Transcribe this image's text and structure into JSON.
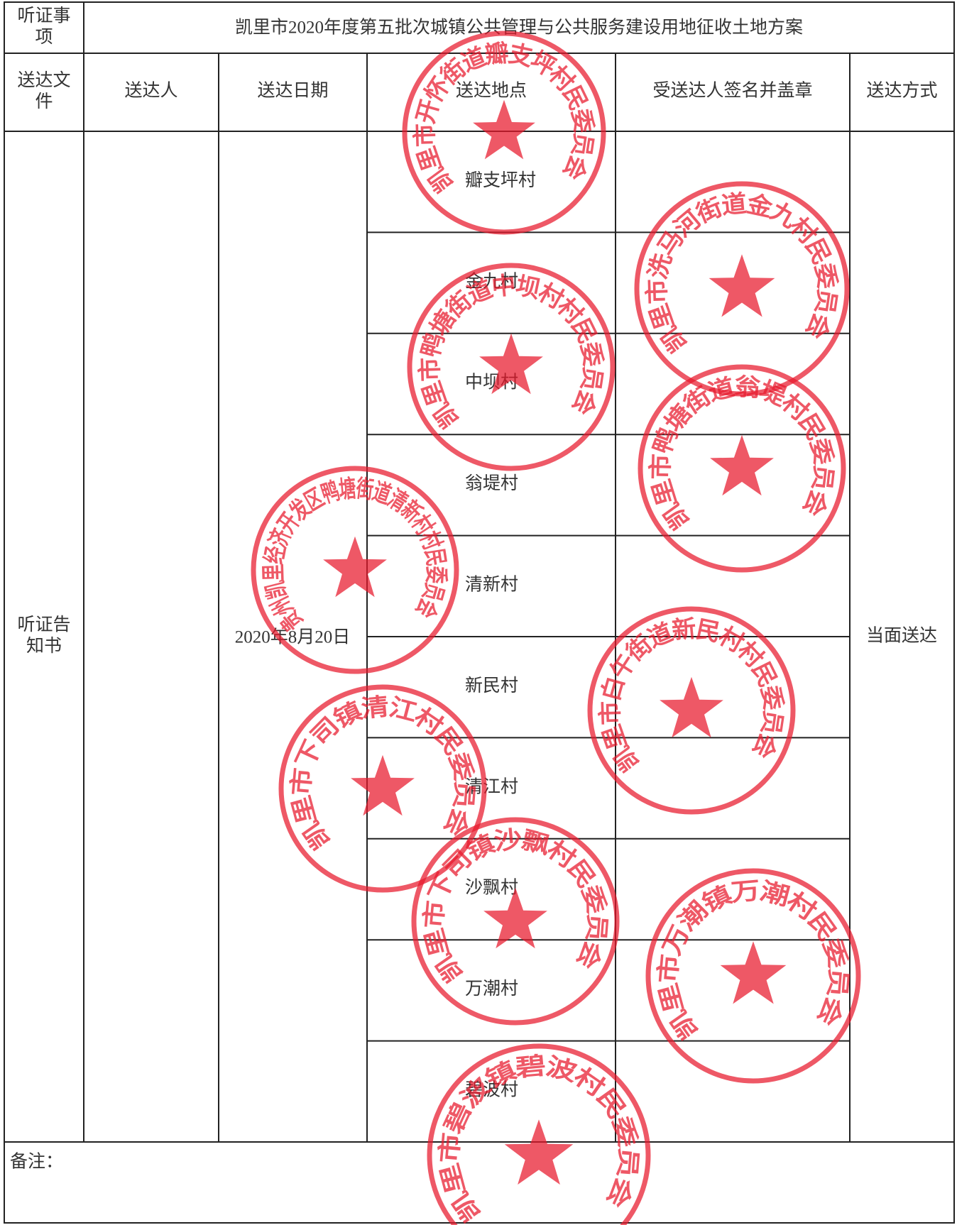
{
  "header": {
    "label": "听证事项",
    "title": "凯里市2020年度第五批次城镇公共管理与公共服务建设用地征收土地方案"
  },
  "columns": [
    "送达文件",
    "送达人",
    "送达日期",
    "送达地点",
    "受送达人签名并盖章",
    "送达方式"
  ],
  "record": {
    "document": "听证告知书",
    "date": "2020年8月20日",
    "method": "当面送达",
    "places": [
      "瓣支坪村",
      "金九村",
      "中坝村",
      "翁堤村",
      "清新村",
      "新民村",
      "清江村",
      "沙飘村",
      "万潮村",
      "碧波村"
    ]
  },
  "remark": "备注：",
  "stamps": [
    "凯里市开怀街道瓣支坪村民委员会",
    "凯里市洗马河街道金九村民委员会",
    "凯里市鸭塘街道中坝村村民委员会",
    "凯里市鸭塘街道翁堤村民委员会",
    "贵州凯里经济开发区鸭塘街道清新村村民委员会",
    "凯里市白午街道新民村村民委员会",
    "凯里市下司镇清江村民委员会",
    "凯里市下司镇沙飘村民委员会",
    "凯里市万潮镇万潮村民委员会",
    "凯里市碧波镇碧波村民委员会"
  ]
}
